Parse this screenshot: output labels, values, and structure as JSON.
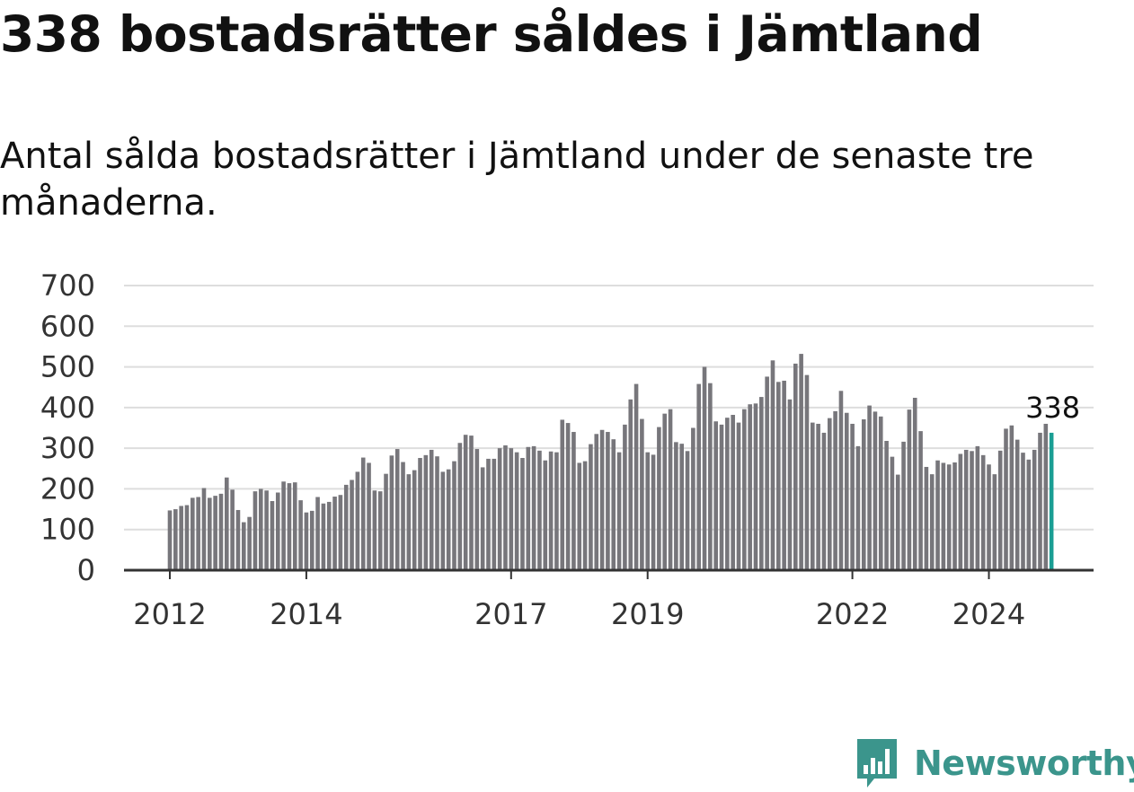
{
  "page": {
    "title": "338 bostadsrätter såldes i Jämtland",
    "subtitle": "Antal sålda bostadsrätter i Jämtland under de senaste tre månaderna."
  },
  "brand": {
    "name": "Newsworthy",
    "icon": "bar-chart-speech-bubble-icon",
    "color": "#3b958c"
  },
  "colors": {
    "bar": "#77767b",
    "highlight": "#1a9e94",
    "grid": "#dddddd",
    "axis": "#333333"
  },
  "chart_data": {
    "type": "bar",
    "title": "338 bostadsrätter såldes i Jämtland",
    "subtitle": "Antal sålda bostadsrätter i Jämtland under de senaste tre månaderna.",
    "xlabel": "",
    "ylabel": "",
    "ylim": [
      0,
      700
    ],
    "yticks": [
      0,
      100,
      200,
      300,
      400,
      500,
      600,
      700
    ],
    "grid": true,
    "legend": "none",
    "x_start": "2012-01",
    "x_interval": "month",
    "xtick_labels": [
      {
        "label": "2012",
        "date": "2012-01"
      },
      {
        "label": "2014",
        "date": "2014-01"
      },
      {
        "label": "2017",
        "date": "2017-01"
      },
      {
        "label": "2019",
        "date": "2019-01"
      },
      {
        "label": "2022",
        "date": "2022-01"
      },
      {
        "label": "2024",
        "date": "2024-01"
      }
    ],
    "values": [
      147,
      150,
      158,
      160,
      178,
      180,
      202,
      178,
      183,
      188,
      228,
      198,
      148,
      118,
      131,
      194,
      200,
      196,
      170,
      191,
      218,
      214,
      216,
      172,
      142,
      146,
      180,
      164,
      168,
      181,
      185,
      210,
      222,
      242,
      277,
      264,
      196,
      194,
      237,
      282,
      298,
      266,
      236,
      246,
      276,
      283,
      296,
      280,
      242,
      248,
      268,
      313,
      333,
      331,
      298,
      253,
      274,
      274,
      300,
      307,
      300,
      290,
      276,
      303,
      305,
      294,
      270,
      292,
      290,
      370,
      362,
      340,
      264,
      268,
      310,
      335,
      345,
      340,
      322,
      290,
      358,
      420,
      458,
      372,
      290,
      284,
      352,
      385,
      396,
      315,
      311,
      293,
      350,
      458,
      500,
      460,
      366,
      358,
      375,
      382,
      363,
      396,
      408,
      410,
      426,
      476,
      516,
      463,
      466,
      420,
      508,
      532,
      480,
      363,
      360,
      338,
      374,
      391,
      441,
      387,
      360,
      305,
      371,
      405,
      390,
      378,
      318,
      279,
      235,
      316,
      395,
      424,
      342,
      254,
      236,
      270,
      264,
      260,
      265,
      286,
      296,
      293,
      305,
      283,
      260,
      236,
      294,
      348,
      356,
      321,
      289,
      272,
      296,
      338,
      360,
      338
    ],
    "highlight_index": 155,
    "annotations": [
      {
        "index": 155,
        "text": "338"
      }
    ]
  }
}
